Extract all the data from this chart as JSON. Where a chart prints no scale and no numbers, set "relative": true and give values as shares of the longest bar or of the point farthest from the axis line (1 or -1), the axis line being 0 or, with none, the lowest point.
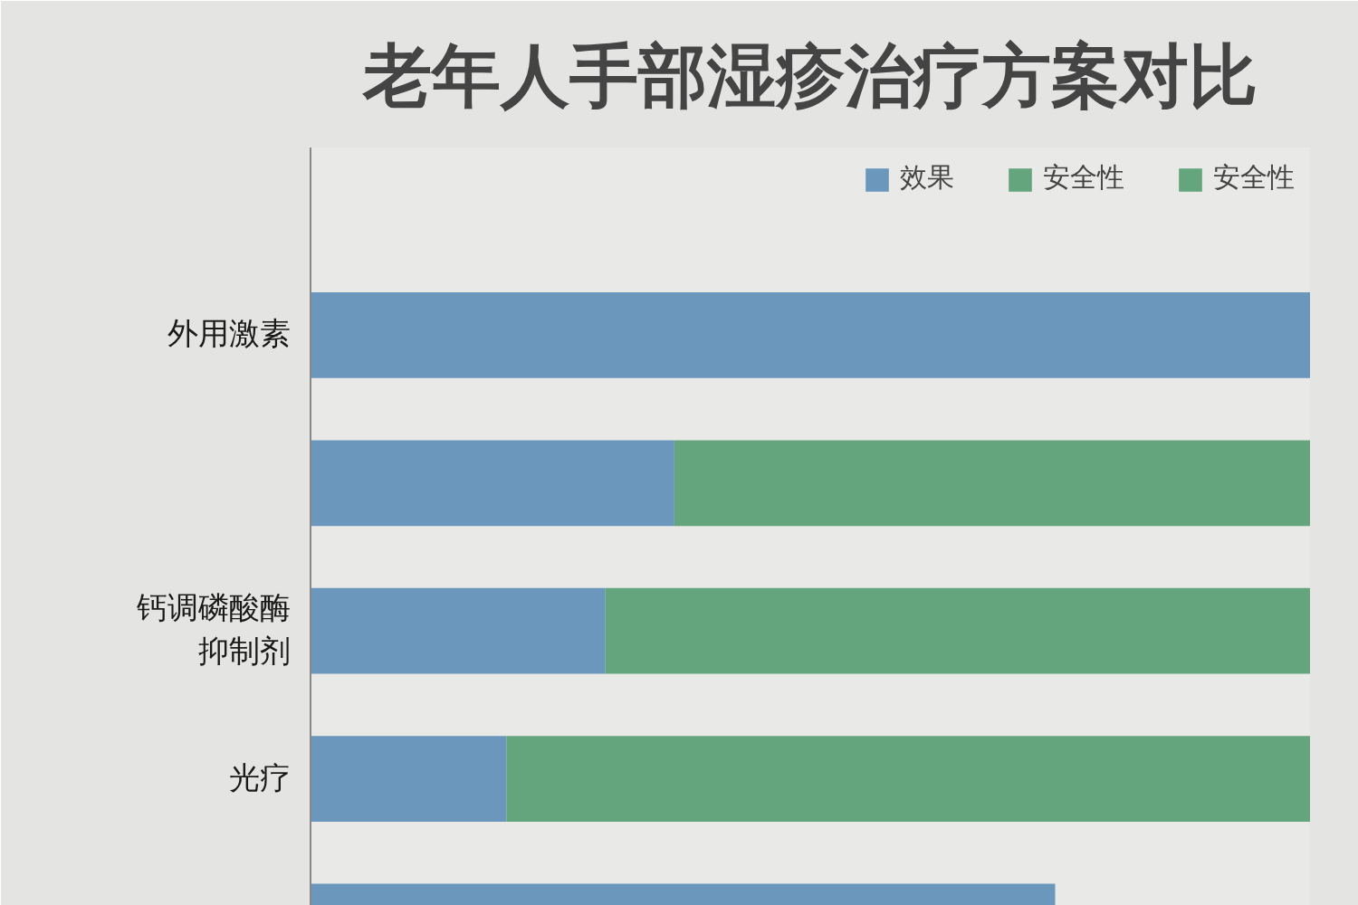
{
  "chart_data": {
    "type": "bar",
    "orientation": "horizontal",
    "stacked": true,
    "relative": true,
    "title": "老年人手部湿疹治疗方案对比",
    "categories": [
      "外用激素",
      null,
      "钙调磷酸酶抑制剂",
      "光疗",
      null
    ],
    "series": [
      {
        "name": "效果",
        "color": "#6b97bd",
        "values": [
          1,
          0.364,
          0.295,
          0.196,
          0.745
        ]
      },
      {
        "name": "安全性",
        "color": "#64a57e",
        "values": [
          null,
          0.636,
          0.705,
          0.804,
          null
        ]
      },
      {
        "name": "安全性",
        "color": "#64a57e",
        "values": [
          null,
          null,
          null,
          null,
          null
        ]
      }
    ],
    "legend": "top right"
  }
}
